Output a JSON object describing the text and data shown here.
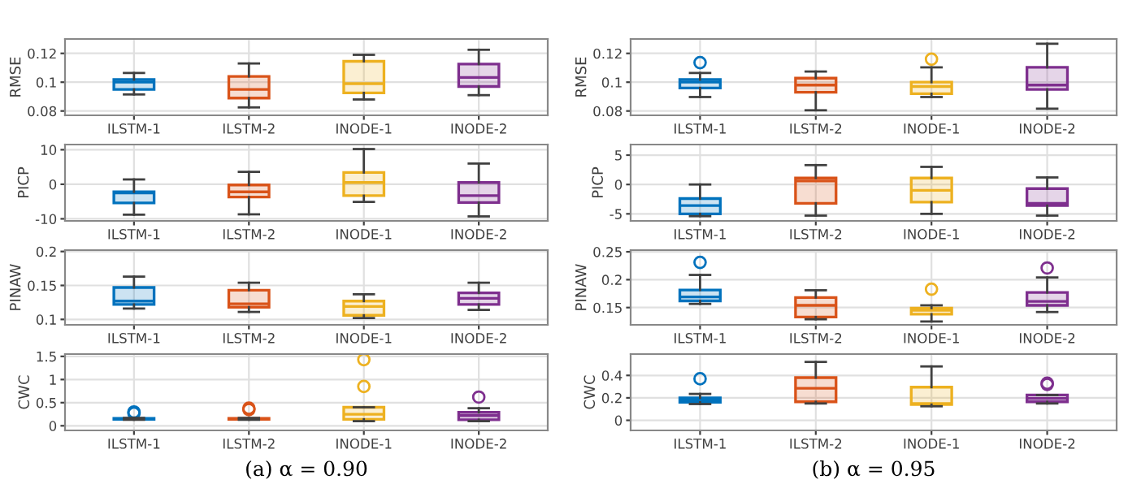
{
  "chart_data": [
    {
      "type": "box",
      "ylabel": "RMSE",
      "categories": [
        "ILSTM-1",
        "ILSTM-2",
        "INODE-1",
        "INODE-2"
      ],
      "colors": [
        "#0072bd",
        "#d95319",
        "#edb120",
        "#7e2f8e"
      ],
      "ylim": [
        0.077,
        0.13
      ],
      "yticks": [
        0.08,
        0.1,
        0.12
      ],
      "grid": true,
      "boxes": [
        {
          "low": 0.0915,
          "q1": 0.095,
          "median": 0.1,
          "q3": 0.1018,
          "high": 0.1064
        },
        {
          "low": 0.0825,
          "q1": 0.089,
          "median": 0.095,
          "q3": 0.104,
          "high": 0.113
        },
        {
          "low": 0.088,
          "q1": 0.0926,
          "median": 0.099,
          "q3": 0.1145,
          "high": 0.119
        },
        {
          "low": 0.091,
          "q1": 0.097,
          "median": 0.1033,
          "q3": 0.1126,
          "high": 0.1225
        }
      ]
    },
    {
      "type": "box",
      "ylabel": "PICP",
      "categories": [
        "ILSTM-1",
        "ILSTM-2",
        "INODE-1",
        "INODE-2"
      ],
      "colors": [
        "#0072bd",
        "#d95319",
        "#edb120",
        "#7e2f8e"
      ],
      "ylim": [
        -10.6,
        11.5
      ],
      "yticks": [
        -10,
        0,
        10
      ],
      "grid": true,
      "boxes": [
        {
          "low": -8.8,
          "q1": -5.4,
          "median": -2.5,
          "q3": -2.2,
          "high": 1.4
        },
        {
          "low": -8.7,
          "q1": -3.7,
          "median": -2.2,
          "q3": -0.2,
          "high": 3.6
        },
        {
          "low": -5.1,
          "q1": -3.3,
          "median": 0.5,
          "q3": 3.4,
          "high": 10.2
        },
        {
          "low": -9.3,
          "q1": -5.3,
          "median": -3.3,
          "q3": 0.5,
          "high": 6
        }
      ]
    },
    {
      "type": "box",
      "ylabel": "PINAW",
      "categories": [
        "ILSTM-1",
        "ILSTM-2",
        "INODE-1",
        "INODE-2"
      ],
      "colors": [
        "#0072bd",
        "#d95319",
        "#edb120",
        "#7e2f8e"
      ],
      "ylim": [
        0.092,
        0.202
      ],
      "yticks": [
        0.1,
        0.15,
        0.2
      ],
      "grid": true,
      "boxes": [
        {
          "low": 0.116,
          "q1": 0.122,
          "median": 0.127,
          "q3": 0.147,
          "high": 0.163
        },
        {
          "low": 0.111,
          "q1": 0.118,
          "median": 0.123,
          "q3": 0.143,
          "high": 0.154
        },
        {
          "low": 0.102,
          "q1": 0.106,
          "median": 0.119,
          "q3": 0.127,
          "high": 0.137
        },
        {
          "low": 0.114,
          "q1": 0.122,
          "median": 0.131,
          "q3": 0.139,
          "high": 0.154
        }
      ]
    },
    {
      "type": "box",
      "ylabel": "CWC",
      "xlabel": "(a) α = 0.90",
      "categories": [
        "ILSTM-1",
        "ILSTM-2",
        "INODE-1",
        "INODE-2"
      ],
      "colors": [
        "#0072bd",
        "#d95319",
        "#edb120",
        "#7e2f8e"
      ],
      "ylim": [
        -0.1,
        1.55
      ],
      "yticks": [
        0,
        0.5,
        1,
        1.5
      ],
      "grid": true,
      "boxes": [
        {
          "low": 0.13,
          "q1": 0.14,
          "median": 0.15,
          "q3": 0.16,
          "high": 0.17,
          "outliers": [
            0.27,
            0.3
          ]
        },
        {
          "low": 0.13,
          "q1": 0.14,
          "median": 0.15,
          "q3": 0.16,
          "high": 0.17,
          "outliers": [
            0.35,
            0.38
          ]
        },
        {
          "low": 0.1,
          "q1": 0.14,
          "median": 0.25,
          "q3": 0.4,
          "high": 0.4,
          "outliers": [
            0.85,
            1.43
          ]
        },
        {
          "low": 0.1,
          "q1": 0.13,
          "median": 0.22,
          "q3": 0.29,
          "high": 0.38,
          "outliers": [
            0.62
          ]
        }
      ]
    },
    {
      "type": "box",
      "ylabel": "RMSE",
      "categories": [
        "ILSTM-1",
        "ILSTM-2",
        "INODE-1",
        "INODE-2"
      ],
      "colors": [
        "#0072bd",
        "#d95319",
        "#edb120",
        "#7e2f8e"
      ],
      "ylim": [
        0.077,
        0.13
      ],
      "yticks": [
        0.08,
        0.1,
        0.12
      ],
      "grid": true,
      "boxes": [
        {
          "low": 0.0897,
          "q1": 0.096,
          "median": 0.1,
          "q3": 0.1018,
          "high": 0.1064,
          "outliers": [
            0.1136
          ]
        },
        {
          "low": 0.0805,
          "q1": 0.093,
          "median": 0.098,
          "q3": 0.1028,
          "high": 0.1074
        },
        {
          "low": 0.0897,
          "q1": 0.092,
          "median": 0.097,
          "q3": 0.1,
          "high": 0.1103,
          "outliers": [
            0.116
          ]
        },
        {
          "low": 0.0816,
          "q1": 0.095,
          "median": 0.098,
          "q3": 0.1103,
          "high": 0.1267
        }
      ]
    },
    {
      "type": "box",
      "ylabel": "PICP",
      "categories": [
        "ILSTM-1",
        "ILSTM-2",
        "INODE-1",
        "INODE-2"
      ],
      "colors": [
        "#0072bd",
        "#d95319",
        "#edb120",
        "#7e2f8e"
      ],
      "ylim": [
        -6.2,
        6.8
      ],
      "yticks": [
        -5,
        0,
        5
      ],
      "grid": true,
      "boxes": [
        {
          "low": -5.4,
          "q1": -5,
          "median": -3.6,
          "q3": -2.4,
          "high": 0
        },
        {
          "low": -5.3,
          "q1": -3.2,
          "median": 0.6,
          "q3": 1.1,
          "high": 3.3
        },
        {
          "low": -5,
          "q1": -3,
          "median": -1,
          "q3": 1.1,
          "high": 3
        },
        {
          "low": -5.3,
          "q1": -3.6,
          "median": -3.2,
          "q3": -0.7,
          "high": 1.2
        }
      ]
    },
    {
      "type": "box",
      "ylabel": "PINAW",
      "categories": [
        "ILSTM-1",
        "ILSTM-2",
        "INODE-1",
        "INODE-2"
      ],
      "colors": [
        "#0072bd",
        "#d95319",
        "#edb120",
        "#7e2f8e"
      ],
      "ylim": [
        0.119,
        0.253
      ],
      "yticks": [
        0.15,
        0.2,
        0.25
      ],
      "grid": true,
      "boxes": [
        {
          "low": 0.1565,
          "q1": 0.162,
          "median": 0.169,
          "q3": 0.1815,
          "high": 0.2085,
          "outliers": [
            0.231
          ]
        },
        {
          "low": 0.129,
          "q1": 0.133,
          "median": 0.154,
          "q3": 0.168,
          "high": 0.181
        },
        {
          "low": 0.125,
          "q1": 0.138,
          "median": 0.145,
          "q3": 0.149,
          "high": 0.154,
          "outliers": [
            0.183
          ]
        },
        {
          "low": 0.142,
          "q1": 0.154,
          "median": 0.161,
          "q3": 0.177,
          "high": 0.204,
          "outliers": [
            0.221
          ]
        }
      ]
    },
    {
      "type": "box",
      "ylabel": "CWC",
      "xlabel": "(b) α = 0.95",
      "categories": [
        "ILSTM-1",
        "ILSTM-2",
        "INODE-1",
        "INODE-2"
      ],
      "colors": [
        "#0072bd",
        "#d95319",
        "#edb120",
        "#7e2f8e"
      ],
      "ylim": [
        -0.09,
        0.59
      ],
      "yticks": [
        0,
        0.2,
        0.4
      ],
      "grid": true,
      "boxes": [
        {
          "low": 0.145,
          "q1": 0.16,
          "median": 0.18,
          "q3": 0.2,
          "high": 0.235,
          "outliers": [
            0.37
          ]
        },
        {
          "low": 0.15,
          "q1": 0.165,
          "median": 0.285,
          "q3": 0.38,
          "high": 0.52
        },
        {
          "low": 0.125,
          "q1": 0.14,
          "median": 0.15,
          "q3": 0.295,
          "high": 0.48
        },
        {
          "low": 0.15,
          "q1": 0.165,
          "median": 0.195,
          "q3": 0.225,
          "high": 0.225,
          "outliers": [
            0.32,
            0.33
          ]
        }
      ]
    }
  ]
}
